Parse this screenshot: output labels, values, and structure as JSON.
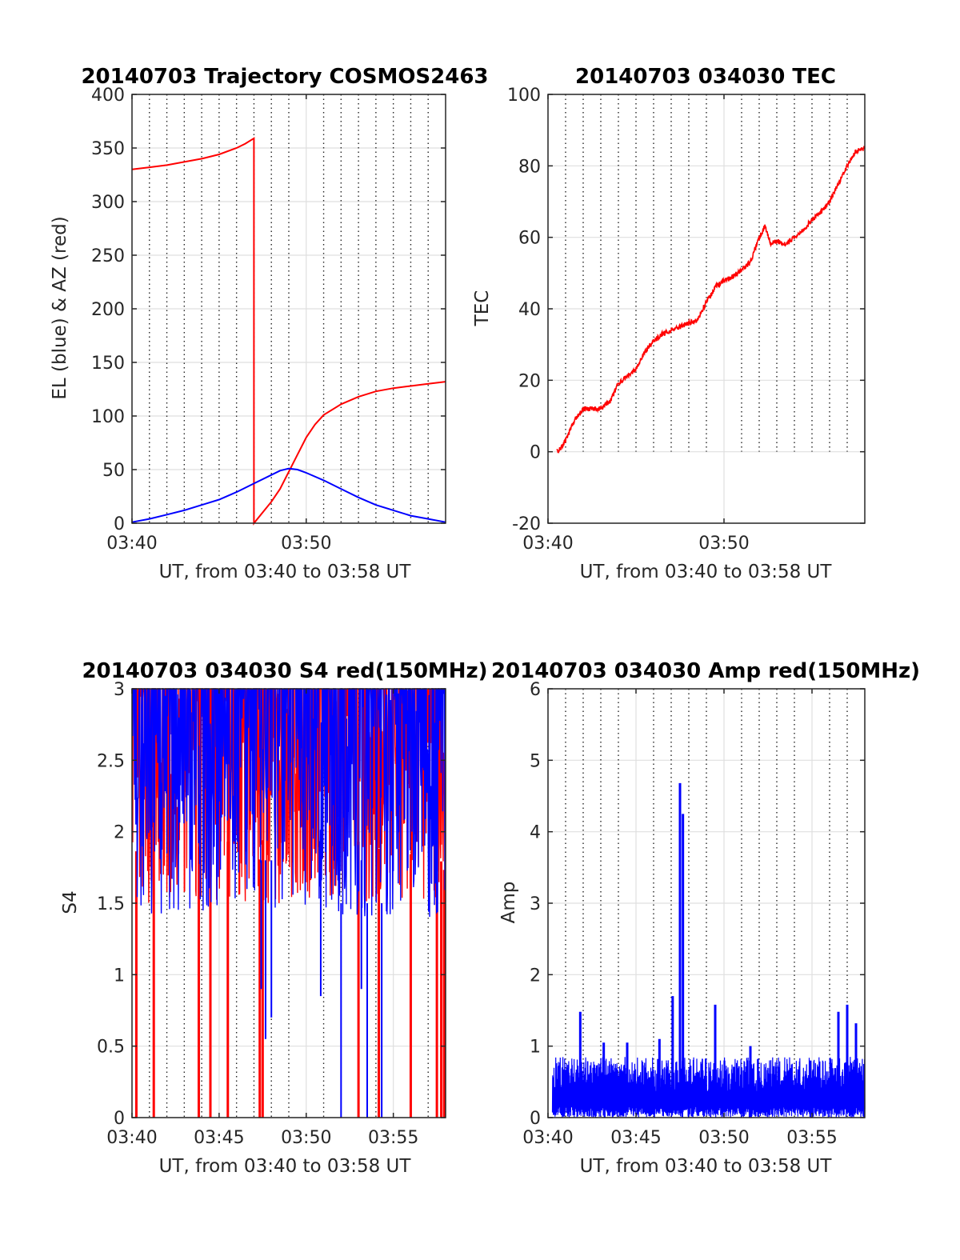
{
  "figure": {
    "background": "#ffffff"
  },
  "chart_data": [
    {
      "type": "line",
      "title": "20140703 Trajectory COSMOS2463",
      "xlabel": "UT, from 03:40 to 03:58 UT",
      "ylabel": "EL (blue) & AZ (red)",
      "xlim": [
        "03:40",
        "03:58"
      ],
      "ylim": [
        0,
        400
      ],
      "xticks": [
        "03:40",
        "03:50"
      ],
      "yticks": [
        "0",
        "50",
        "100",
        "150",
        "200",
        "250",
        "300",
        "350",
        "400"
      ],
      "minor_x_grid_minutes": 1,
      "grid": true,
      "colors": {
        "el": "#0000ff",
        "az": "#ff0000"
      },
      "series": [
        {
          "key": "az",
          "x": [
            "03:40:00",
            "03:41:00",
            "03:42:00",
            "03:43:00",
            "03:44:00",
            "03:45:00",
            "03:46:00",
            "03:46:30",
            "03:47:00",
            "03:47:00",
            "03:48:00",
            "03:48:30",
            "03:49:00",
            "03:49:30",
            "03:50:00",
            "03:50:30",
            "03:51:00",
            "03:52:00",
            "03:53:00",
            "03:54:00",
            "03:55:00",
            "03:56:00",
            "03:57:00",
            "03:58:00"
          ],
          "y": [
            330,
            332,
            334,
            337,
            340,
            344,
            350,
            354,
            359,
            0,
            20,
            32,
            48,
            64,
            80,
            92,
            101,
            111,
            118,
            123,
            126,
            128,
            130,
            132
          ]
        },
        {
          "key": "el",
          "x": [
            "03:40:00",
            "03:41:00",
            "03:42:00",
            "03:43:00",
            "03:44:00",
            "03:45:00",
            "03:46:00",
            "03:47:00",
            "03:48:00",
            "03:48:30",
            "03:49:00",
            "03:49:30",
            "03:50:00",
            "03:51:00",
            "03:52:00",
            "03:53:00",
            "03:54:00",
            "03:55:00",
            "03:56:00",
            "03:57:00",
            "03:58:00"
          ],
          "y": [
            1,
            4,
            8,
            12,
            17,
            22,
            29,
            37,
            45,
            49,
            51,
            50,
            47,
            40,
            32,
            24,
            17,
            12,
            7,
            4,
            1
          ]
        }
      ]
    },
    {
      "type": "line",
      "title": "20140703 034030 TEC",
      "xlabel": "UT, from 03:40 to 03:58 UT",
      "ylabel": "TEC",
      "xlim": [
        "03:40",
        "03:58"
      ],
      "ylim": [
        -20,
        100
      ],
      "xticks": [
        "03:40",
        "03:50"
      ],
      "yticks": [
        "-20",
        "0",
        "20",
        "40",
        "60",
        "80",
        "100"
      ],
      "minor_x_grid_minutes": 1,
      "minor_x_grid_ymin": 0,
      "grid": true,
      "colors": {
        "tec": "#ff0000"
      },
      "series": [
        {
          "key": "tec",
          "x": [
            "03:40:30",
            "03:40:45",
            "03:41:00",
            "03:41:15",
            "03:41:30",
            "03:42:00",
            "03:42:30",
            "03:43:00",
            "03:43:30",
            "03:44:00",
            "03:44:30",
            "03:45:00",
            "03:45:30",
            "03:46:00",
            "03:46:30",
            "03:47:00",
            "03:47:30",
            "03:48:00",
            "03:48:30",
            "03:49:00",
            "03:49:30",
            "03:50:00",
            "03:50:30",
            "03:51:00",
            "03:51:30",
            "03:52:00",
            "03:52:20",
            "03:52:40",
            "03:53:00",
            "03:53:30",
            "03:54:00",
            "03:54:30",
            "03:55:00",
            "03:55:30",
            "03:56:00",
            "03:56:30",
            "03:57:00",
            "03:57:30",
            "03:58:00"
          ],
          "y": [
            0,
            1,
            3,
            6,
            9,
            12,
            12,
            12,
            14,
            19,
            21,
            23,
            28,
            31,
            33,
            34,
            35,
            36,
            37,
            42,
            46,
            48,
            49,
            51,
            53,
            60,
            63,
            58,
            59,
            58,
            60,
            62,
            65,
            67,
            70,
            75,
            80,
            84,
            85
          ]
        }
      ]
    },
    {
      "type": "line",
      "title": "20140703 034030 S4 red(150MHz)",
      "xlabel": "UT, from 03:40 to 03:58 UT",
      "ylabel": "S4",
      "xlim": [
        "03:40",
        "03:58"
      ],
      "ylim": [
        0,
        3
      ],
      "xticks": [
        "03:40",
        "03:45",
        "03:50",
        "03:55"
      ],
      "yticks": [
        "0",
        "0.5",
        "1",
        "1.5",
        "2",
        "2.5",
        "3"
      ],
      "minor_x_grid_minutes": 1,
      "grid": true,
      "colors": {
        "red_channel": "#ff0000",
        "blue_channel": "#0000ff"
      },
      "series": [
        {
          "key": "red_channel",
          "x_start": "03:40:00",
          "x_end": "03:58:00",
          "typical_min": 1.5,
          "typical_max": 3.0,
          "saturated_above": 3.0
        },
        {
          "key": "blue_channel",
          "x_start": "03:40:00",
          "x_end": "03:58:00",
          "typical_min": 1.4,
          "typical_max": 3.0,
          "saturated_above": 3.0
        }
      ],
      "dropouts_red": [
        "03:40:15",
        "03:41:15",
        "03:43:50",
        "03:44:30",
        "03:45:30",
        "03:47:20",
        "03:47:30",
        "03:53:00",
        "03:54:10",
        "03:56:00",
        "03:57:30",
        "03:57:45",
        "03:57:55"
      ],
      "dips_blue": [
        {
          "x": "03:47:25",
          "y": 0.9
        },
        {
          "x": "03:47:40",
          "y": 0.55
        },
        {
          "x": "03:48:00",
          "y": 0.7
        },
        {
          "x": "03:50:50",
          "y": 0.85
        },
        {
          "x": "03:53:10",
          "y": 0.9
        }
      ],
      "dropouts_blue": [
        "03:52:00",
        "03:53:30",
        "03:54:20"
      ]
    },
    {
      "type": "line",
      "title": "20140703 034030 Amp red(150MHz)",
      "xlabel": "UT, from 03:40 to 03:58 UT",
      "ylabel": "Amp",
      "xlim": [
        "03:40",
        "03:58"
      ],
      "ylim": [
        0,
        6
      ],
      "xticks": [
        "03:40",
        "03:45",
        "03:50",
        "03:55"
      ],
      "yticks": [
        "0",
        "1",
        "2",
        "3",
        "4",
        "5",
        "6"
      ],
      "minor_x_grid_minutes": 1,
      "grid": true,
      "colors": {
        "amp": "#0000ff"
      },
      "series": [
        {
          "key": "amp",
          "x_start": "03:40:15",
          "x_end": "03:58:00",
          "typical_min": 0.0,
          "typical_max": 0.85
        }
      ],
      "peaks": [
        {
          "x": "03:41:50",
          "y": 1.48
        },
        {
          "x": "03:43:10",
          "y": 1.05
        },
        {
          "x": "03:44:30",
          "y": 1.05
        },
        {
          "x": "03:46:20",
          "y": 1.1
        },
        {
          "x": "03:47:05",
          "y": 1.7
        },
        {
          "x": "03:47:30",
          "y": 4.68
        },
        {
          "x": "03:47:40",
          "y": 4.25
        },
        {
          "x": "03:49:30",
          "y": 1.58
        },
        {
          "x": "03:51:30",
          "y": 1.0
        },
        {
          "x": "03:56:30",
          "y": 1.48
        },
        {
          "x": "03:57:00",
          "y": 1.58
        },
        {
          "x": "03:57:30",
          "y": 1.32
        }
      ]
    }
  ]
}
